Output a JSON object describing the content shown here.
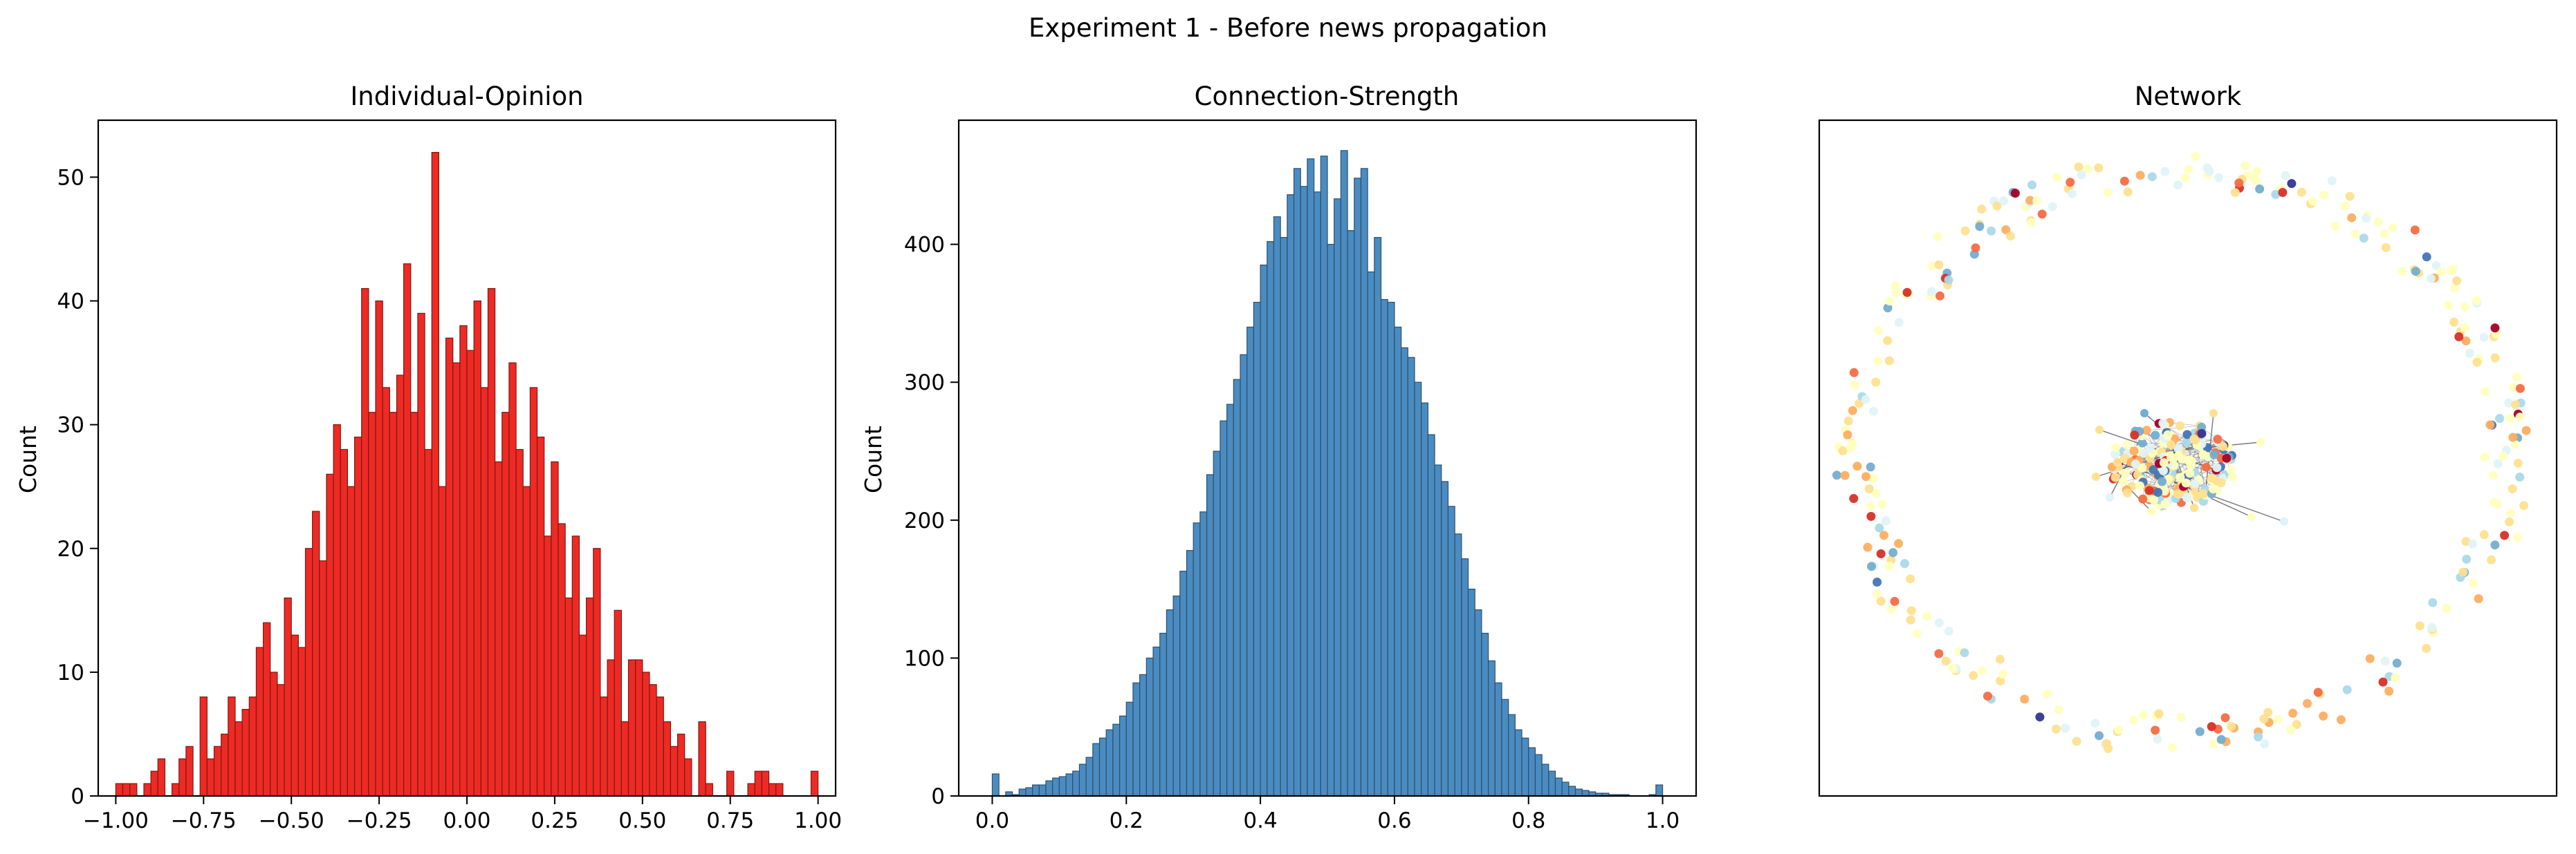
{
  "figure": {
    "suptitle": "Experiment 1 - Before news propagation"
  },
  "chart_data": [
    {
      "type": "bar",
      "title": "Individual-Opinion",
      "xlabel": "",
      "ylabel": "Count",
      "xlim": [
        -1.05,
        1.05
      ],
      "ylim": [
        0,
        54.6
      ],
      "xticks": [
        -1.0,
        -0.75,
        -0.5,
        -0.25,
        0.0,
        0.25,
        0.5,
        0.75,
        1.0
      ],
      "xtick_labels": [
        "−1.00",
        "−0.75",
        "−0.50",
        "−0.25",
        "0.00",
        "0.25",
        "0.50",
        "0.75",
        "1.00"
      ],
      "yticks": [
        0,
        10,
        20,
        30,
        40,
        50
      ],
      "ytick_labels": [
        "0",
        "10",
        "20",
        "30",
        "40",
        "50"
      ],
      "bin_start": -1.0,
      "bin_width": 0.02,
      "color": "#ee2a24",
      "edge_color": "#7a1a14",
      "counts": [
        1,
        1,
        1,
        0,
        1,
        2,
        3,
        0,
        1,
        3,
        4,
        0,
        8,
        3,
        4,
        5,
        8,
        6,
        7,
        8,
        12,
        14,
        10,
        9,
        16,
        13,
        12,
        20,
        23,
        19,
        26,
        30,
        28,
        25,
        29,
        41,
        31,
        40,
        33,
        31,
        34,
        43,
        31,
        39,
        28,
        52,
        25,
        37,
        35,
        38,
        36,
        40,
        33,
        41,
        27,
        31,
        35,
        28,
        25,
        33,
        29,
        21,
        27,
        22,
        16,
        21,
        13,
        16,
        20,
        8,
        11,
        15,
        6,
        11,
        11,
        10,
        9,
        8,
        6,
        4,
        5,
        3,
        0,
        6,
        1,
        0,
        0,
        2,
        0,
        0,
        1,
        2,
        2,
        1,
        1,
        0,
        0,
        0,
        0,
        2
      ]
    },
    {
      "type": "bar",
      "title": "Connection-Strength",
      "xlabel": "",
      "ylabel": "Count",
      "xlim": [
        -0.05,
        1.05
      ],
      "ylim": [
        0,
        490
      ],
      "xticks": [
        0.0,
        0.2,
        0.4,
        0.6,
        0.8,
        1.0
      ],
      "xtick_labels": [
        "0.0",
        "0.2",
        "0.4",
        "0.6",
        "0.8",
        "1.0"
      ],
      "yticks": [
        0,
        100,
        200,
        300,
        400
      ],
      "ytick_labels": [
        "0",
        "100",
        "200",
        "300",
        "400"
      ],
      "bin_start": 0.0,
      "bin_width": 0.01,
      "color": "#4a8cc1",
      "edge_color": "#2d4f6a",
      "counts": [
        16,
        0,
        3,
        1,
        5,
        6,
        8,
        8,
        11,
        13,
        14,
        16,
        18,
        23,
        28,
        38,
        42,
        48,
        52,
        58,
        68,
        82,
        88,
        100,
        108,
        118,
        135,
        145,
        163,
        178,
        198,
        206,
        233,
        250,
        272,
        284,
        302,
        320,
        340,
        358,
        385,
        402,
        420,
        405,
        436,
        455,
        442,
        462,
        438,
        464,
        400,
        433,
        468,
        410,
        448,
        455,
        380,
        405,
        360,
        358,
        340,
        325,
        318,
        300,
        285,
        262,
        240,
        228,
        210,
        190,
        172,
        150,
        135,
        118,
        98,
        82,
        70,
        59,
        48,
        42,
        35,
        30,
        23,
        18,
        13,
        10,
        7,
        5,
        4,
        3,
        2,
        2,
        1,
        1,
        1,
        0,
        0,
        0,
        1,
        8
      ]
    },
    {
      "type": "scatter",
      "title": "Network",
      "xlabel": "",
      "ylabel": "",
      "axis_ticks": false,
      "node_palette": [
        "#a50026",
        "#d73027",
        "#f46d43",
        "#fdae61",
        "#fee090",
        "#ffffbf",
        "#e0f3f8",
        "#abd9e9",
        "#74add1",
        "#4575b4",
        "#313695"
      ],
      "edge_color": "#555555"
    }
  ]
}
